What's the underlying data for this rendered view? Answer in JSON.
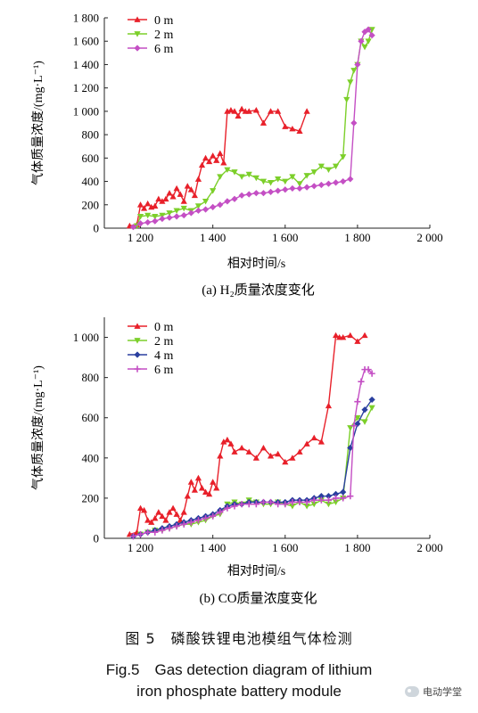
{
  "figure": {
    "caption_zh": "图 5　磷酸铁锂电池模组气体检测",
    "caption_en_line1": "Fig.5　Gas detection diagram of lithium",
    "caption_en_line2": "iron phosphate battery module",
    "watermark": "电动学堂"
  },
  "colors": {
    "0 m": "#e8202a",
    "2 m": "#7ccf2a",
    "4 m": "#2a3f9f",
    "6 m": "#c44fc4"
  },
  "chart_data": [
    {
      "type": "line",
      "panel_label": "(a)",
      "title": "H₂质量浓度变化",
      "xlabel": "相对时间/s",
      "ylabel": "气体质量浓度/(mg·L⁻¹)",
      "xlim": [
        1100,
        2000
      ],
      "ylim": [
        0,
        1800
      ],
      "xticks": [
        1200,
        1400,
        1600,
        1800,
        2000
      ],
      "xtick_labels": [
        "1 200",
        "1 400",
        "1 600",
        "1 800",
        "2 000"
      ],
      "yticks": [
        0,
        200,
        400,
        600,
        800,
        1000,
        1200,
        1400,
        1600,
        1800
      ],
      "ytick_labels": [
        "0",
        "200",
        "400",
        "600",
        "800",
        "1 000",
        "1 200",
        "1 400",
        "1 600",
        "1 800"
      ],
      "legend_position": "top-left",
      "series": [
        {
          "name": "0 m",
          "marker": "triangle-up",
          "x": [
            1170,
            1190,
            1200,
            1210,
            1220,
            1230,
            1240,
            1250,
            1260,
            1270,
            1280,
            1290,
            1300,
            1310,
            1320,
            1330,
            1340,
            1350,
            1360,
            1370,
            1380,
            1390,
            1400,
            1410,
            1420,
            1430,
            1440,
            1450,
            1460,
            1470,
            1480,
            1490,
            1500,
            1520,
            1540,
            1560,
            1580,
            1600,
            1620,
            1640,
            1660
          ],
          "y": [
            20,
            30,
            200,
            170,
            210,
            180,
            190,
            250,
            230,
            250,
            300,
            270,
            340,
            290,
            230,
            360,
            330,
            280,
            420,
            540,
            600,
            570,
            620,
            580,
            640,
            560,
            1000,
            1010,
            1000,
            960,
            1020,
            1000,
            1000,
            1010,
            900,
            1000,
            1000,
            870,
            850,
            830,
            1000
          ]
        },
        {
          "name": "2 m",
          "marker": "triangle-down",
          "x": [
            1190,
            1200,
            1220,
            1240,
            1260,
            1280,
            1300,
            1320,
            1340,
            1360,
            1380,
            1400,
            1420,
            1440,
            1460,
            1480,
            1500,
            1520,
            1540,
            1560,
            1580,
            1600,
            1620,
            1640,
            1660,
            1680,
            1700,
            1720,
            1740,
            1760,
            1770,
            1780,
            1790,
            1800,
            1810,
            1820,
            1830,
            1840
          ],
          "y": [
            20,
            100,
            110,
            100,
            110,
            130,
            150,
            170,
            150,
            190,
            230,
            320,
            440,
            500,
            480,
            440,
            460,
            430,
            400,
            390,
            420,
            400,
            440,
            380,
            450,
            480,
            530,
            500,
            530,
            610,
            1100,
            1250,
            1350,
            1400,
            1600,
            1550,
            1600,
            1700
          ]
        },
        {
          "name": "6 m",
          "marker": "diamond",
          "x": [
            1180,
            1200,
            1220,
            1240,
            1260,
            1280,
            1300,
            1320,
            1340,
            1360,
            1380,
            1400,
            1420,
            1440,
            1460,
            1480,
            1500,
            1520,
            1540,
            1560,
            1580,
            1600,
            1620,
            1640,
            1660,
            1680,
            1700,
            1720,
            1740,
            1760,
            1780,
            1790,
            1800,
            1810,
            1820,
            1830,
            1840
          ],
          "y": [
            10,
            40,
            50,
            60,
            80,
            90,
            100,
            110,
            130,
            150,
            160,
            180,
            200,
            230,
            250,
            280,
            290,
            300,
            300,
            310,
            320,
            330,
            340,
            340,
            350,
            360,
            370,
            380,
            390,
            400,
            420,
            900,
            1400,
            1600,
            1680,
            1700,
            1650
          ]
        }
      ]
    },
    {
      "type": "line",
      "panel_label": "(b)",
      "title": "CO质量浓度变化",
      "xlabel": "相对时间/s",
      "ylabel": "气体质量浓度/(mg·L⁻¹)",
      "xlim": [
        1100,
        2000
      ],
      "ylim": [
        0,
        1100
      ],
      "xticks": [
        1200,
        1400,
        1600,
        1800,
        2000
      ],
      "xtick_labels": [
        "1 200",
        "1 400",
        "1 600",
        "1 800",
        "2 000"
      ],
      "yticks": [
        0,
        200,
        400,
        600,
        800,
        1000
      ],
      "ytick_labels": [
        "0",
        "200",
        "400",
        "600",
        "800",
        "1 000"
      ],
      "legend_position": "top-right",
      "series": [
        {
          "name": "0 m",
          "marker": "triangle-up",
          "x": [
            1170,
            1190,
            1200,
            1210,
            1220,
            1230,
            1240,
            1250,
            1260,
            1270,
            1280,
            1290,
            1300,
            1310,
            1320,
            1330,
            1340,
            1350,
            1360,
            1370,
            1380,
            1390,
            1400,
            1410,
            1420,
            1430,
            1440,
            1450,
            1460,
            1480,
            1500,
            1520,
            1540,
            1560,
            1580,
            1600,
            1620,
            1640,
            1660,
            1680,
            1700,
            1720,
            1740,
            1750,
            1760,
            1780,
            1800,
            1820
          ],
          "y": [
            20,
            30,
            150,
            140,
            90,
            80,
            100,
            130,
            110,
            90,
            130,
            150,
            120,
            90,
            130,
            210,
            280,
            240,
            300,
            250,
            230,
            220,
            280,
            250,
            410,
            480,
            490,
            470,
            430,
            450,
            430,
            400,
            450,
            410,
            420,
            380,
            400,
            430,
            470,
            500,
            480,
            660,
            1010,
            1000,
            1000,
            1010,
            980,
            1010
          ]
        },
        {
          "name": "2 m",
          "marker": "triangle-down",
          "x": [
            1200,
            1220,
            1240,
            1260,
            1280,
            1300,
            1320,
            1340,
            1360,
            1380,
            1400,
            1420,
            1440,
            1460,
            1480,
            1500,
            1520,
            1540,
            1560,
            1580,
            1600,
            1620,
            1640,
            1660,
            1680,
            1700,
            1720,
            1740,
            1760,
            1780,
            1800,
            1820,
            1840
          ],
          "y": [
            20,
            30,
            40,
            40,
            50,
            60,
            70,
            70,
            80,
            90,
            110,
            120,
            170,
            180,
            170,
            190,
            180,
            170,
            170,
            180,
            170,
            160,
            180,
            160,
            170,
            190,
            170,
            180,
            200,
            550,
            600,
            580,
            650
          ]
        },
        {
          "name": "4 m",
          "marker": "diamond",
          "x": [
            1180,
            1200,
            1220,
            1240,
            1260,
            1280,
            1300,
            1320,
            1340,
            1360,
            1380,
            1400,
            1420,
            1440,
            1460,
            1480,
            1500,
            1520,
            1540,
            1560,
            1580,
            1600,
            1620,
            1640,
            1660,
            1680,
            1700,
            1720,
            1740,
            1760,
            1780,
            1800,
            1820,
            1840
          ],
          "y": [
            10,
            20,
            30,
            40,
            50,
            60,
            70,
            80,
            90,
            100,
            110,
            120,
            140,
            160,
            170,
            170,
            180,
            180,
            180,
            180,
            180,
            180,
            190,
            190,
            190,
            200,
            210,
            210,
            220,
            230,
            450,
            570,
            640,
            690
          ]
        },
        {
          "name": "6 m",
          "marker": "plus",
          "x": [
            1180,
            1200,
            1220,
            1240,
            1260,
            1280,
            1300,
            1320,
            1340,
            1360,
            1380,
            1400,
            1420,
            1440,
            1460,
            1480,
            1500,
            1520,
            1540,
            1560,
            1580,
            1600,
            1620,
            1640,
            1660,
            1680,
            1700,
            1720,
            1740,
            1760,
            1780,
            1790,
            1800,
            1810,
            1820,
            1830,
            1840
          ],
          "y": [
            10,
            20,
            30,
            30,
            40,
            50,
            60,
            70,
            80,
            90,
            100,
            110,
            130,
            150,
            160,
            170,
            170,
            170,
            180,
            180,
            170,
            170,
            180,
            180,
            180,
            190,
            190,
            190,
            200,
            200,
            210,
            560,
            680,
            780,
            840,
            840,
            820
          ]
        }
      ]
    }
  ]
}
